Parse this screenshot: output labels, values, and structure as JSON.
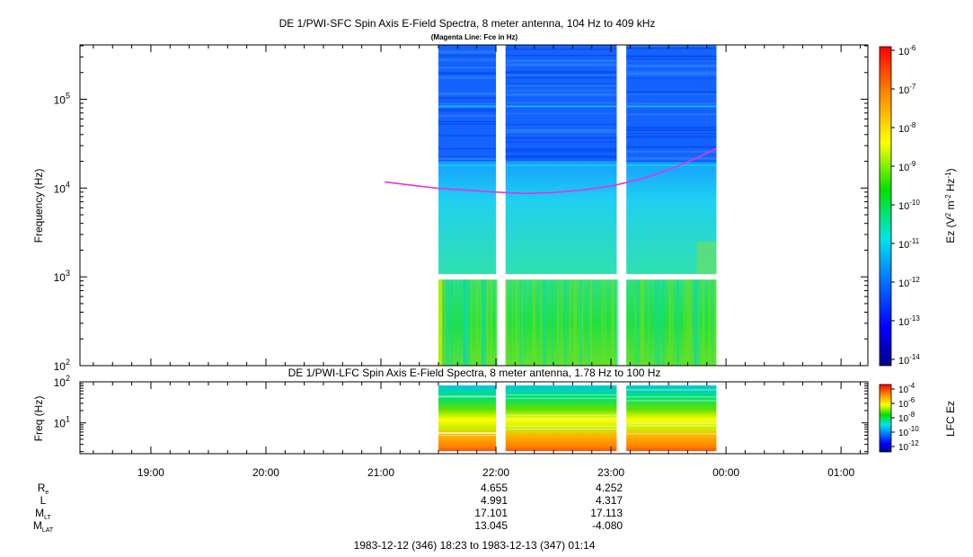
{
  "chart_data": [
    {
      "type": "heatmap",
      "title": "DE 1/PWI-SFC  Spin Axis E-Field Spectra, 8 meter antenna, 104 Hz to 409 kHz",
      "subtitle": "(Magenta Line: Fce in Hz)",
      "ylabel": "Frequency (Hz)",
      "y_scale": "log",
      "ylim": [
        100,
        409000
      ],
      "y_ticks": [
        {
          "base": "10",
          "exp": "2"
        },
        {
          "base": "10",
          "exp": "3"
        },
        {
          "base": "10",
          "exp": "4"
        },
        {
          "base": "10",
          "exp": "5"
        }
      ],
      "colorbar": {
        "label_main": "Ez (V",
        "label_sup1": "2",
        "label_mid": " m",
        "label_sup2": "-2",
        "label_hz": " Hz",
        "label_sup3": "-1",
        "label_end": ")",
        "range": [
          1e-14,
          1e-06
        ],
        "tick_exps": [
          "-6",
          "-7",
          "-8",
          "-9",
          "-10",
          "-11",
          "-12",
          "-13",
          "-14"
        ]
      },
      "data_intervals": [
        [
          "21:30",
          "22:00"
        ],
        [
          "22:05",
          "23:03"
        ],
        [
          "23:08",
          "23:55"
        ]
      ],
      "gap_frequency_hz": 1000,
      "series": [
        {
          "name": "Fce in Hz",
          "color": "#e633e6",
          "points": [
            {
              "time": "21:02",
              "hz": 11700
            },
            {
              "time": "21:30",
              "hz": 9900
            },
            {
              "time": "22:00",
              "hz": 9000
            },
            {
              "time": "22:15",
              "hz": 8700
            },
            {
              "time": "22:30",
              "hz": 8900
            },
            {
              "time": "22:45",
              "hz": 9500
            },
            {
              "time": "23:00",
              "hz": 10500
            },
            {
              "time": "23:15",
              "hz": 12500
            },
            {
              "time": "23:30",
              "hz": 16000
            },
            {
              "time": "23:45",
              "hz": 22000
            },
            {
              "time": "23:55",
              "hz": 28000
            }
          ]
        }
      ]
    },
    {
      "type": "heatmap",
      "title": "DE 1/PWI-LFC  Spin Axis E-Field Spectra, 8 meter antenna, 1.78 Hz to 100 Hz",
      "ylabel": "Freq (Hz)",
      "y_scale": "log",
      "ylim": [
        1.78,
        100
      ],
      "y_ticks": [
        {
          "base": "10",
          "exp": "1"
        },
        {
          "base": "10",
          "exp": "2"
        }
      ],
      "colorbar": {
        "label": "LFC Ez",
        "range": [
          1e-12,
          0.0001
        ],
        "tick_exps": [
          "-4",
          "-6",
          "-8",
          "-10",
          "-12"
        ]
      },
      "data_intervals": [
        [
          "21:30",
          "22:00"
        ],
        [
          "22:05",
          "23:03"
        ],
        [
          "23:08",
          "23:55"
        ]
      ]
    }
  ],
  "time_axis": {
    "start": "18:23",
    "end": "01:14",
    "ticks": [
      "19:00",
      "20:00",
      "21:00",
      "22:00",
      "23:00",
      "00:00",
      "01:00"
    ]
  },
  "ephemeris": {
    "rows": [
      {
        "label": "R",
        "sub": "e",
        "values": [
          "4.655",
          "4.252"
        ]
      },
      {
        "label": "L",
        "sub": "",
        "values": [
          "4.991",
          "4.317"
        ]
      },
      {
        "label": "M",
        "sub": "LT",
        "values": [
          "17.101",
          "17.113"
        ]
      },
      {
        "label": "M",
        "sub": "LAT",
        "values": [
          "13.045",
          "-4.080"
        ]
      }
    ],
    "at_times": [
      "22:00",
      "23:00"
    ]
  },
  "footer": "1983-12-12 (346) 18:23 to 1983-12-13 (347) 01:14"
}
